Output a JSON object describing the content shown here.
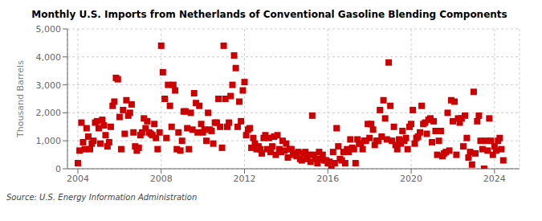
{
  "chart_data": {
    "type": "scatter",
    "title": "Monthly U.S. Imports from Netherlands of Conventional Gasoline Blending Components",
    "ylabel": "Thousand Barrels",
    "annotations": [
      "Source: U.S. Energy Information Administration"
    ],
    "color": "#cc0000",
    "marker": "square",
    "grid": true,
    "xlim": [
      2003.5,
      2025.2
    ],
    "ylim": [
      0,
      5000
    ],
    "xticks": [
      2004,
      2008,
      2012,
      2016,
      2020,
      2024
    ],
    "yticks": [
      0,
      {
        "value": 1000,
        "label": "1,000"
      },
      {
        "value": 2000,
        "label": "2,000"
      },
      {
        "value": 3000,
        "label": "3,000"
      },
      {
        "value": 4000,
        "label": "4,000"
      },
      {
        "value": 5000,
        "label": "5,000"
      }
    ],
    "x": [
      2004.0,
      2004.08,
      2004.17,
      2004.25,
      2004.33,
      2004.42,
      2004.5,
      2004.58,
      2004.67,
      2004.75,
      2004.83,
      2004.92,
      2005.0,
      2005.08,
      2005.17,
      2005.25,
      2005.33,
      2005.42,
      2005.5,
      2005.58,
      2005.67,
      2005.75,
      2005.83,
      2005.92,
      2006.0,
      2006.08,
      2006.17,
      2006.25,
      2006.33,
      2006.42,
      2006.5,
      2006.58,
      2006.67,
      2006.75,
      2006.83,
      2006.92,
      2007.0,
      2007.08,
      2007.17,
      2007.25,
      2007.33,
      2007.42,
      2007.5,
      2007.58,
      2007.67,
      2007.75,
      2007.83,
      2007.92,
      2008.0,
      2008.08,
      2008.17,
      2008.25,
      2008.33,
      2008.42,
      2008.5,
      2008.58,
      2008.67,
      2008.75,
      2008.83,
      2008.92,
      2009.0,
      2009.08,
      2009.17,
      2009.25,
      2009.33,
      2009.42,
      2009.5,
      2009.58,
      2009.67,
      2009.75,
      2009.83,
      2009.92,
      2010.0,
      2010.08,
      2010.17,
      2010.25,
      2010.33,
      2010.42,
      2010.5,
      2010.58,
      2010.67,
      2010.75,
      2010.83,
      2010.92,
      2011.0,
      2011.08,
      2011.17,
      2011.25,
      2011.33,
      2011.42,
      2011.5,
      2011.58,
      2011.67,
      2011.75,
      2011.83,
      2011.92,
      2012.0,
      2012.08,
      2012.17,
      2012.25,
      2012.33,
      2012.42,
      2012.5,
      2012.58,
      2012.67,
      2012.75,
      2012.83,
      2012.92,
      2013.0,
      2013.08,
      2013.17,
      2013.25,
      2013.33,
      2013.42,
      2013.5,
      2013.58,
      2013.67,
      2013.75,
      2013.83,
      2013.92,
      2014.0,
      2014.08,
      2014.17,
      2014.25,
      2014.33,
      2014.42,
      2014.5,
      2014.58,
      2014.67,
      2014.75,
      2014.83,
      2014.92,
      2015.0,
      2015.08,
      2015.17,
      2015.25,
      2015.33,
      2015.42,
      2015.5,
      2015.58,
      2015.67,
      2015.75,
      2015.83,
      2015.92,
      2016.0,
      2016.08,
      2016.17,
      2016.25,
      2016.33,
      2016.42,
      2016.5,
      2016.58,
      2016.67,
      2016.75,
      2016.83,
      2016.92,
      2017.0,
      2017.08,
      2017.17,
      2017.25,
      2017.33,
      2017.42,
      2017.5,
      2017.58,
      2017.67,
      2017.75,
      2017.83,
      2017.92,
      2018.0,
      2018.08,
      2018.17,
      2018.25,
      2018.33,
      2018.42,
      2018.5,
      2018.58,
      2018.67,
      2018.75,
      2018.83,
      2018.92,
      2019.0,
      2019.08,
      2019.17,
      2019.25,
      2019.33,
      2019.42,
      2019.5,
      2019.58,
      2019.67,
      2019.75,
      2019.83,
      2019.92,
      2020.0,
      2020.08,
      2020.17,
      2020.25,
      2020.33,
      2020.42,
      2020.5,
      2020.58,
      2020.67,
      2020.75,
      2020.83,
      2020.92,
      2021.0,
      2021.08,
      2021.17,
      2021.25,
      2021.33,
      2021.42,
      2021.5,
      2021.58,
      2021.67,
      2021.75,
      2021.83,
      2021.92,
      2022.0,
      2022.08,
      2022.17,
      2022.25,
      2022.33,
      2022.42,
      2022.5,
      2022.58,
      2022.67,
      2022.75,
      2022.83,
      2022.92,
      2023.0,
      2023.08,
      2023.17,
      2023.25,
      2023.33,
      2023.42,
      2023.5,
      2023.58,
      2023.67,
      2023.75,
      2023.83,
      2023.92,
      2024.0,
      2024.08,
      2024.17,
      2024.25,
      2024.33,
      2024.42
    ],
    "values": [
      200,
      650,
      1650,
      950,
      700,
      1450,
      1150,
      700,
      900,
      1000,
      1650,
      1700,
      1450,
      900,
      1750,
      1550,
      1200,
      800,
      950,
      1500,
      2250,
      2400,
      3250,
      3200,
      1850,
      700,
      2100,
      1250,
      2450,
      1900,
      2000,
      2300,
      1300,
      800,
      650,
      750,
      1200,
      1300,
      1800,
      1450,
      1700,
      1300,
      1250,
      1200,
      1600,
      1100,
      700,
      1300,
      4400,
      3450,
      2500,
      1100,
      3000,
      2250,
      1500,
      3000,
      2800,
      700,
      1300,
      650,
      1000,
      2050,
      2050,
      1450,
      700,
      2000,
      1400,
      2700,
      2350,
      1300,
      2250,
      1600,
      1300,
      1400,
      1000,
      2000,
      1400,
      1350,
      900,
      1650,
      1650,
      2500,
      1500,
      750,
      4400,
      2500,
      1500,
      1650,
      2600,
      3000,
      4050,
      3600,
      1500,
      2400,
      1700,
      2800,
      3100,
      1200,
      1400,
      1450,
      750,
      1100,
      900,
      700,
      800,
      700,
      550,
      1100,
      1200,
      700,
      1100,
      600,
      800,
      1150,
      500,
      1200,
      700,
      600,
      1000,
      650,
      900,
      400,
      700,
      700,
      500,
      550,
      450,
      600,
      350,
      300,
      550,
      600,
      350,
      500,
      250,
      1900,
      500,
      350,
      200,
      600,
      350,
      500,
      300,
      300,
      200,
      250,
      0,
      600,
      200,
      1450,
      800,
      350,
      300,
      600,
      200,
      700,
      600,
      1050,
      750,
      700,
      200,
      1050,
      900,
      900,
      700,
      1000,
      1000,
      1600,
      1100,
      1600,
      1400,
      850,
      1000,
      1000,
      2100,
      1150,
      2450,
      1800,
      1050,
      3800,
      2250,
      1000,
      1500,
      850,
      700,
      1050,
      900,
      1350,
      1000,
      1100,
      700,
      1500,
      1600,
      2100,
      900,
      1100,
      1150,
      1300,
      2250,
      1600,
      1650,
      1250,
      1750,
      1800,
      950,
      1700,
      1350,
      500,
      1000,
      1350,
      450,
      550,
      600,
      2000,
      650,
      2450,
      1700,
      2400,
      500,
      1800,
      1650,
      1800,
      800,
      1900,
      1100,
      400,
      600,
      150,
      2750,
      550,
      1700,
      1900,
      1000,
      700,
      0,
      1000,
      650,
      1800,
      1000,
      500,
      800,
      650,
      1000,
      1100,
      700,
      300
    ]
  }
}
